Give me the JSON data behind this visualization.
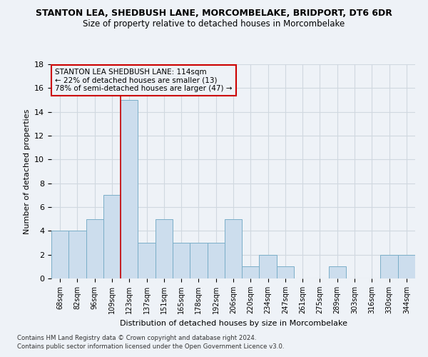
{
  "title": "STANTON LEA, SHEDBUSH LANE, MORCOMBELAKE, BRIDPORT, DT6 6DR",
  "subtitle": "Size of property relative to detached houses in Morcombelake",
  "xlabel": "Distribution of detached houses by size in Morcombelake",
  "ylabel": "Number of detached properties",
  "categories": [
    "68sqm",
    "82sqm",
    "96sqm",
    "109sqm",
    "123sqm",
    "137sqm",
    "151sqm",
    "165sqm",
    "178sqm",
    "192sqm",
    "206sqm",
    "220sqm",
    "234sqm",
    "247sqm",
    "261sqm",
    "275sqm",
    "289sqm",
    "303sqm",
    "316sqm",
    "330sqm",
    "344sqm"
  ],
  "values": [
    4,
    4,
    5,
    7,
    15,
    3,
    5,
    3,
    3,
    3,
    5,
    1,
    2,
    1,
    0,
    0,
    1,
    0,
    0,
    2,
    2
  ],
  "bar_color": "#ccdded",
  "bar_edgecolor": "#7aaec8",
  "grid_color": "#d0d8e0",
  "vline_xindex": 3.5,
  "vline_color": "#cc0000",
  "annotation_text": "STANTON LEA SHEDBUSH LANE: 114sqm\n← 22% of detached houses are smaller (13)\n78% of semi-detached houses are larger (47) →",
  "annotation_box_edgecolor": "#cc0000",
  "ylim": [
    0,
    18
  ],
  "yticks": [
    0,
    2,
    4,
    6,
    8,
    10,
    12,
    14,
    16,
    18
  ],
  "footer1": "Contains HM Land Registry data © Crown copyright and database right 2024.",
  "footer2": "Contains public sector information licensed under the Open Government Licence v3.0.",
  "background_color": "#eef2f7",
  "title_fontsize": 9,
  "subtitle_fontsize": 8.5
}
